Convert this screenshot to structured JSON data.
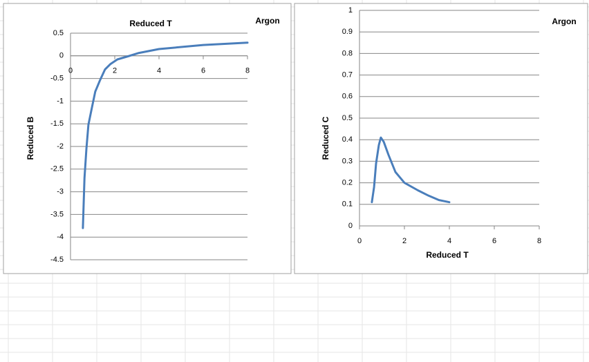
{
  "chart_data": [
    {
      "type": "line",
      "x_label": "Reduced T",
      "y_label": "Reduced B",
      "series": [
        {
          "name": "Argon",
          "color": "#4a7ebb",
          "x": [
            0.56,
            0.63,
            0.72,
            0.81,
            0.97,
            1.12,
            1.34,
            1.56,
            1.81,
            2.12,
            2.6,
            3.06,
            4.0,
            6.0,
            8.0
          ],
          "values": [
            -3.8,
            -2.7,
            -2.05,
            -1.52,
            -1.14,
            -0.79,
            -0.53,
            -0.3,
            -0.18,
            -0.08,
            -0.01,
            0.06,
            0.15,
            0.24,
            0.29
          ]
        }
      ],
      "xlim": [
        0,
        8
      ],
      "xticks": [
        0,
        2,
        4,
        6,
        8
      ],
      "ylim": [
        -4.5,
        0.5
      ],
      "yticks": [
        -4.5,
        -4,
        -3.5,
        -3,
        -2.5,
        -2,
        -1.5,
        -1,
        -0.5,
        0,
        0.5
      ],
      "grid": true
    },
    {
      "type": "line",
      "x_label": "Reduced T",
      "y_label": "Reduced C",
      "series": [
        {
          "name": "Argon",
          "color": "#4a7ebb",
          "x": [
            0.55,
            0.65,
            0.74,
            0.86,
            0.95,
            1.08,
            1.29,
            1.6,
            2.0,
            2.6,
            3.08,
            3.54,
            4.0
          ],
          "values": [
            0.11,
            0.18,
            0.29,
            0.375,
            0.41,
            0.39,
            0.33,
            0.25,
            0.2,
            0.165,
            0.14,
            0.12,
            0.11
          ]
        }
      ],
      "xlim": [
        0,
        8
      ],
      "xticks": [
        0,
        2,
        4,
        6,
        8
      ],
      "ylim": [
        0,
        1
      ],
      "yticks": [
        0,
        0.1,
        0.2,
        0.3,
        0.4,
        0.5,
        0.6,
        0.7,
        0.8,
        0.9,
        1
      ],
      "grid": true
    }
  ]
}
